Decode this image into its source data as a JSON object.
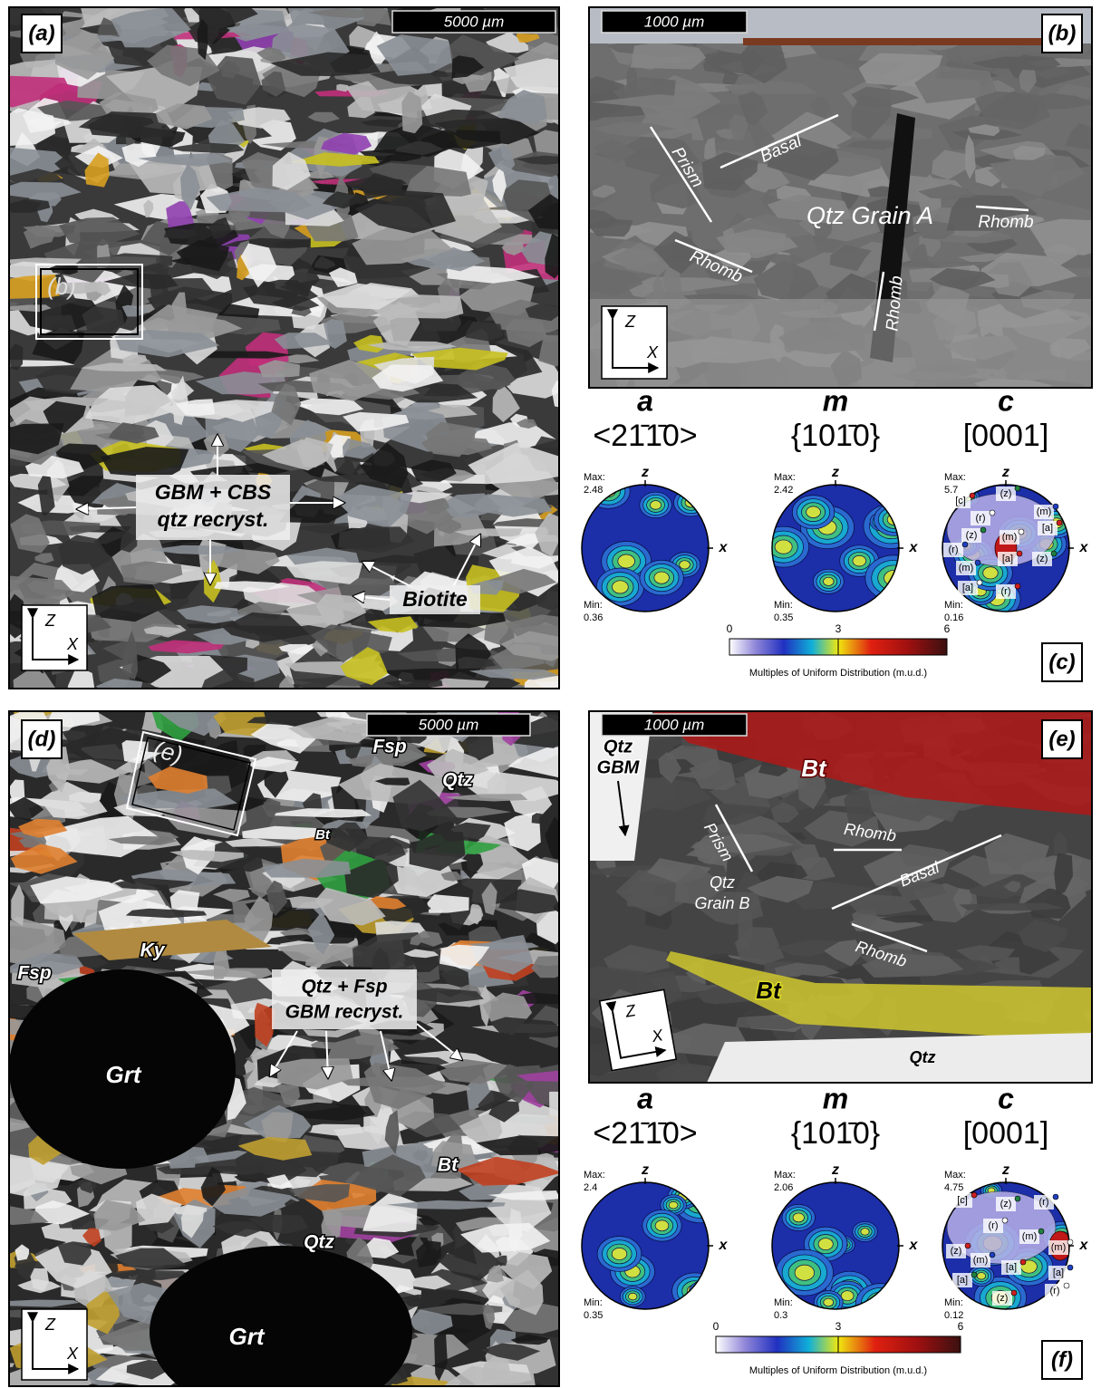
{
  "panel_a": {
    "label": "(a)",
    "scale_bar": "5000 µm",
    "inset": "(b)",
    "note_line1": "GBM + CBS",
    "note_line2": "qtz recryst.",
    "biotite": "Biotite",
    "axis_z": "Z",
    "axis_x": "X"
  },
  "panel_b": {
    "label": "(b)",
    "scale_bar": "1000 µm",
    "prism": "Prism",
    "basal": "Basal",
    "grain": "Qtz Grain A",
    "rhomb_1": "Rhomb",
    "rhomb_2": "Rhomb",
    "rhomb_3": "Rhomb",
    "axis_z": "Z",
    "axis_x": "X"
  },
  "panel_c": {
    "label": "(c)",
    "pole_figures": [
      {
        "letter": "a",
        "index": "<21̄1̄0>",
        "z": "z",
        "x": "x",
        "max_label": "Max:",
        "max": 2.48,
        "min_label": "Min:",
        "min": 0.36
      },
      {
        "letter": "m",
        "index": "{101̄0}",
        "z": "z",
        "x": "x",
        "max_label": "Max:",
        "max": 2.42,
        "min_label": "Min:",
        "min": 0.35
      },
      {
        "letter": "c",
        "index": "[0001]",
        "z": "z",
        "x": "x",
        "max_label": "Max:",
        "max": 5.7,
        "min_label": "Min:",
        "min": 0.16
      }
    ],
    "c_axis_labels": [
      "[c]",
      "(z)",
      "(m)",
      "(r)",
      "[a]",
      "(z)",
      "(r)",
      "(m)",
      "[a]",
      "(z)",
      "(m)",
      "[a]",
      "(r)"
    ],
    "colorbar": {
      "ticks": [
        0,
        3,
        6
      ],
      "title": "Multiples of Uniform Distribution (m.u.d.)"
    }
  },
  "panel_d": {
    "label": "(d)",
    "scale_bar": "5000 µm",
    "inset": "(e)",
    "fsp_1": "Fsp",
    "qtz_1": "Qtz",
    "bt_1": "Bt",
    "ky": "Ky",
    "fsp_2": "Fsp",
    "note_line1": "Qtz + Fsp",
    "note_line2": "GBM recryst.",
    "grt_1": "Grt",
    "bt_2": "Bt",
    "qtz_2": "Qtz",
    "grt_2": "Grt",
    "axis_z": "Z",
    "axis_x": "X"
  },
  "panel_e": {
    "label": "(e)",
    "scale_bar": "1000 µm",
    "qtz_gbm_1": "Qtz",
    "qtz_gbm_2": "GBM",
    "bt_1": "Bt",
    "prism": "Prism",
    "rhomb_1": "Rhomb",
    "grain_1": "Qtz",
    "grain_2": "Grain B",
    "basal": "Basal",
    "rhomb_2": "Rhomb",
    "bt_2": "Bt",
    "qtz": "Qtz",
    "axis_z": "Z",
    "axis_x": "X"
  },
  "panel_f": {
    "label": "(f)",
    "pole_figures": [
      {
        "letter": "a",
        "index": "<21̄1̄0>",
        "z": "z",
        "x": "x",
        "max_label": "Max:",
        "max": 2.4,
        "min_label": "Min:",
        "min": 0.35
      },
      {
        "letter": "m",
        "index": "{101̄0}",
        "z": "z",
        "x": "x",
        "max_label": "Max:",
        "max": 2.06,
        "min_label": "Min:",
        "min": 0.3
      },
      {
        "letter": "c",
        "index": "[0001]",
        "z": "z",
        "x": "x",
        "max_label": "Max:",
        "max": 4.75,
        "min_label": "Min:",
        "min": 0.12
      }
    ],
    "c_axis_labels": [
      "[c]",
      "(z)",
      "(r)",
      "(r)",
      "(z)",
      "(m)",
      "(m)",
      "(m)",
      "[a]",
      "[a]",
      "[a]",
      "(r)",
      "(z)"
    ],
    "colorbar": {
      "ticks": [
        0,
        3,
        6
      ],
      "title": "Multiples of Uniform Distribution (m.u.d.)"
    }
  }
}
